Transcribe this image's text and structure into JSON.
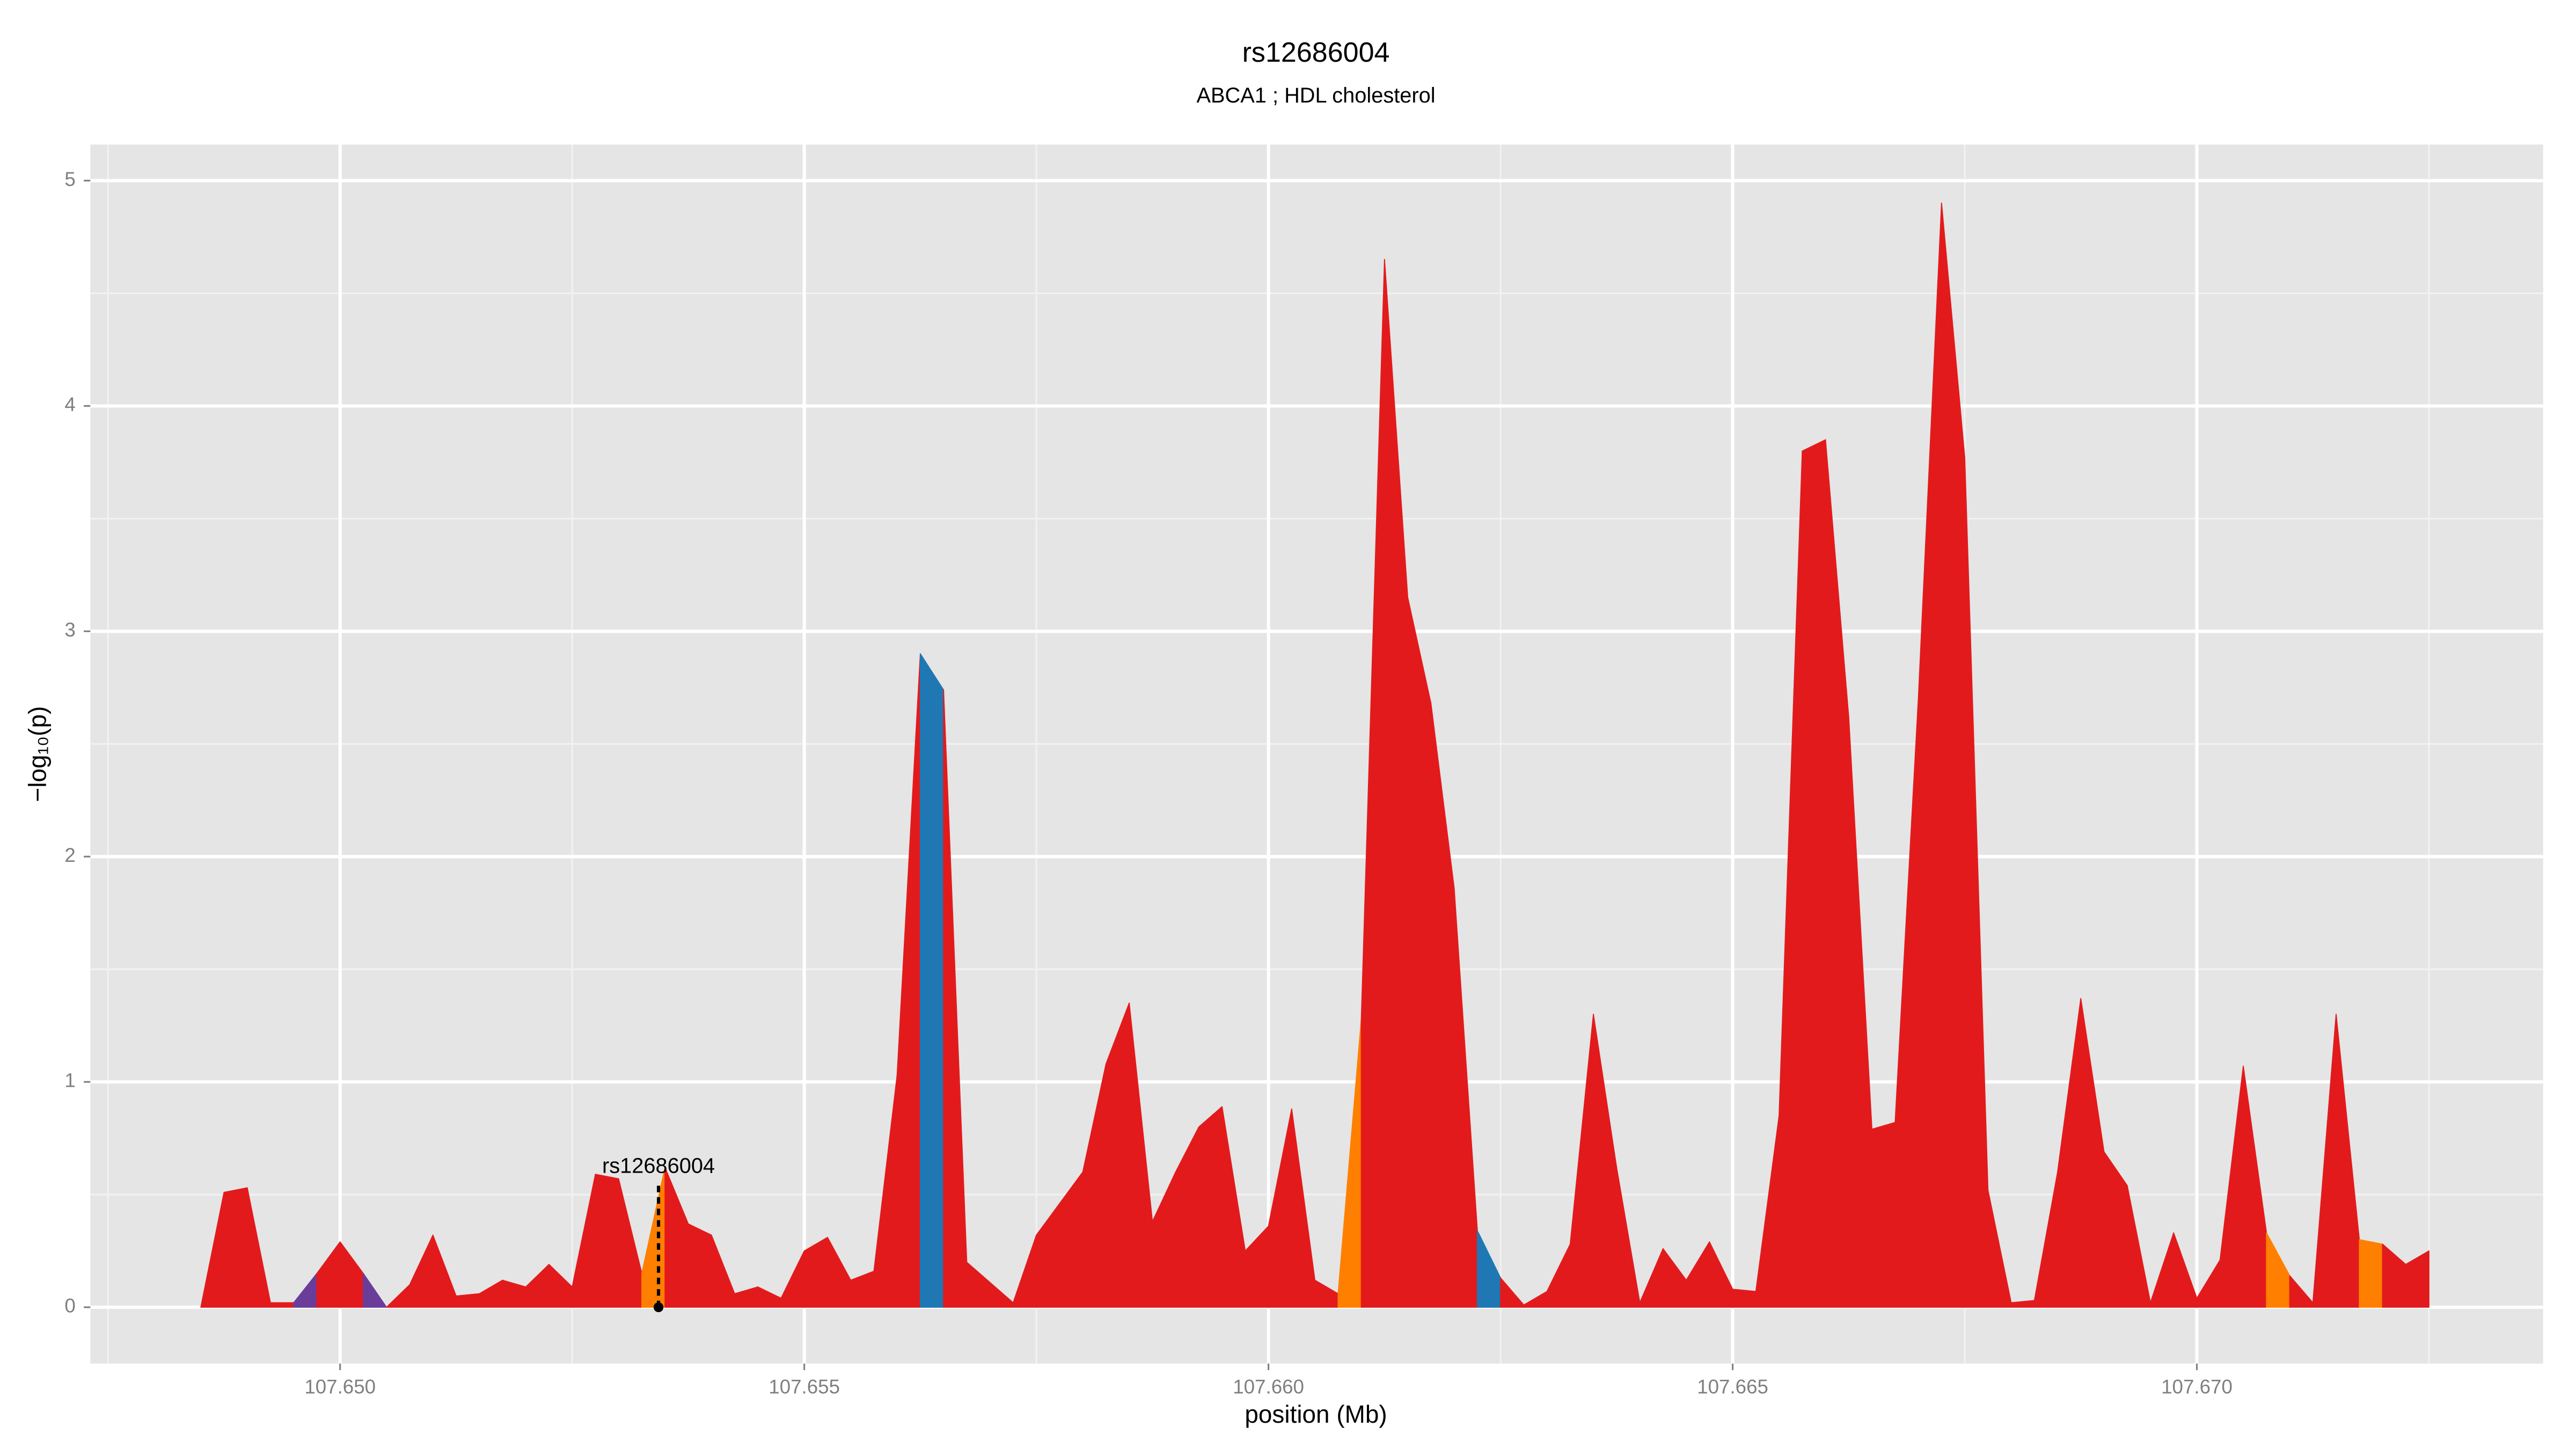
{
  "chart_data": {
    "type": "area",
    "title": "rs12686004",
    "subtitle": "ABCA1 ; HDL cholesterol",
    "x_label": "position (Mb)",
    "y_label": "−log₁₀(p)",
    "x": [
      107.6485,
      107.64875,
      107.649,
      107.64925,
      107.6495,
      107.64975,
      107.65,
      107.65025,
      107.6505,
      107.65075,
      107.651,
      107.65125,
      107.6515,
      107.65175,
      107.652,
      107.65225,
      107.6525,
      107.65275,
      107.653,
      107.65325,
      107.6535,
      107.65375,
      107.654,
      107.65425,
      107.6545,
      107.65475,
      107.655,
      107.65525,
      107.6555,
      107.65575,
      107.656,
      107.65625,
      107.6565,
      107.65675,
      107.657,
      107.65725,
      107.6575,
      107.65775,
      107.658,
      107.65825,
      107.6585,
      107.65875,
      107.659,
      107.65925,
      107.6595,
      107.65975,
      107.66,
      107.66025,
      107.6605,
      107.66075,
      107.661,
      107.66125,
      107.6615,
      107.66175,
      107.662,
      107.66225,
      107.6625,
      107.66275,
      107.663,
      107.66325,
      107.6635,
      107.66375,
      107.664,
      107.66425,
      107.6645,
      107.66475,
      107.665,
      107.66525,
      107.6655,
      107.66575,
      107.666,
      107.66625,
      107.6665,
      107.66675,
      107.667,
      107.66725,
      107.6675,
      107.66775,
      107.668,
      107.66825,
      107.6685,
      107.66875,
      107.669,
      107.66925,
      107.6695,
      107.66975,
      107.67,
      107.67025,
      107.6705,
      107.67075,
      107.671,
      107.67125,
      107.6715,
      107.67175,
      107.672,
      107.67225,
      107.6725
    ],
    "values": [
      0,
      0.51,
      0.53,
      0.02,
      0.02,
      0.15,
      0.29,
      0.15,
      0,
      0.1,
      0.32,
      0.05,
      0.06,
      0.12,
      0.09,
      0.19,
      0.09,
      0.59,
      0.57,
      0.15,
      0.62,
      0.37,
      0.32,
      0.06,
      0.09,
      0.04,
      0.25,
      0.31,
      0.12,
      0.16,
      1.03,
      2.9,
      2.74,
      0.2,
      0.11,
      0.02,
      0.32,
      0.46,
      0.6,
      1.08,
      1.35,
      0.38,
      0.6,
      0.8,
      0.89,
      0.25,
      0.36,
      0.88,
      0.12,
      0.06,
      1.28,
      4.65,
      3.15,
      2.68,
      1.86,
      0.34,
      0.13,
      0.01,
      0.07,
      0.28,
      1.3,
      0.62,
      0.02,
      0.26,
      0.12,
      0.29,
      0.08,
      0.07,
      0.85,
      3.8,
      3.85,
      2.62,
      0.79,
      0.82,
      2.7,
      4.9,
      3.77,
      0.52,
      0.02,
      0.03,
      0.6,
      1.37,
      0.69,
      0.54,
      0.02,
      0.33,
      0.04,
      0.21,
      1.07,
      0.33,
      0.14,
      0.02,
      1.3,
      0.3,
      0.28,
      0.19,
      0.25
    ],
    "colors": [
      "#e31a1c",
      "#e31a1c",
      "#e31a1c",
      "#e31a1c",
      "#6a3d9a",
      "#e31a1c",
      "#e31a1c",
      "#6a3d9a",
      "#e31a1c",
      "#e31a1c",
      "#e31a1c",
      "#e31a1c",
      "#e31a1c",
      "#e31a1c",
      "#e31a1c",
      "#e31a1c",
      "#e31a1c",
      "#e31a1c",
      "#e31a1c",
      "#ff7f00",
      "#e31a1c",
      "#e31a1c",
      "#e31a1c",
      "#e31a1c",
      "#e31a1c",
      "#e31a1c",
      "#e31a1c",
      "#e31a1c",
      "#e31a1c",
      "#e31a1c",
      "#e31a1c",
      "#1f78b4",
      "#e31a1c",
      "#e31a1c",
      "#e31a1c",
      "#e31a1c",
      "#e31a1c",
      "#e31a1c",
      "#e31a1c",
      "#e31a1c",
      "#e31a1c",
      "#e31a1c",
      "#e31a1c",
      "#e31a1c",
      "#e31a1c",
      "#e31a1c",
      "#e31a1c",
      "#e31a1c",
      "#e31a1c",
      "#ff7f00",
      "#e31a1c",
      "#e31a1c",
      "#e31a1c",
      "#e31a1c",
      "#e31a1c",
      "#1f78b4",
      "#e31a1c",
      "#e31a1c",
      "#e31a1c",
      "#e31a1c",
      "#e31a1c",
      "#e31a1c",
      "#e31a1c",
      "#e31a1c",
      "#e31a1c",
      "#e31a1c",
      "#e31a1c",
      "#e31a1c",
      "#e31a1c",
      "#e31a1c",
      "#e31a1c",
      "#e31a1c",
      "#e31a1c",
      "#e31a1c",
      "#e31a1c",
      "#e31a1c",
      "#e31a1c",
      "#e31a1c",
      "#e31a1c",
      "#e31a1c",
      "#e31a1c",
      "#e31a1c",
      "#e31a1c",
      "#e31a1c",
      "#e31a1c",
      "#e31a1c",
      "#e31a1c",
      "#e31a1c",
      "#e31a1c",
      "#ff7f00",
      "#e31a1c",
      "#e31a1c",
      "#e31a1c",
      "#ff7f00",
      "#e31a1c",
      "#e31a1c",
      "#e31a1c"
    ],
    "annotation": {
      "text": "rs12686004",
      "x": 107.65343,
      "y": 0.6
    },
    "xlim": [
      107.64731,
      107.67373
    ],
    "ylim": [
      -0.25,
      5.16
    ],
    "xticks": [
      {
        "value": 107.65,
        "label": "107.650"
      },
      {
        "value": 107.655,
        "label": "107.655"
      },
      {
        "value": 107.66,
        "label": "107.660"
      },
      {
        "value": 107.665,
        "label": "107.665"
      },
      {
        "value": 107.67,
        "label": "107.670"
      }
    ],
    "yticks": [
      0,
      1,
      2,
      3,
      4,
      5
    ],
    "grid": true
  }
}
